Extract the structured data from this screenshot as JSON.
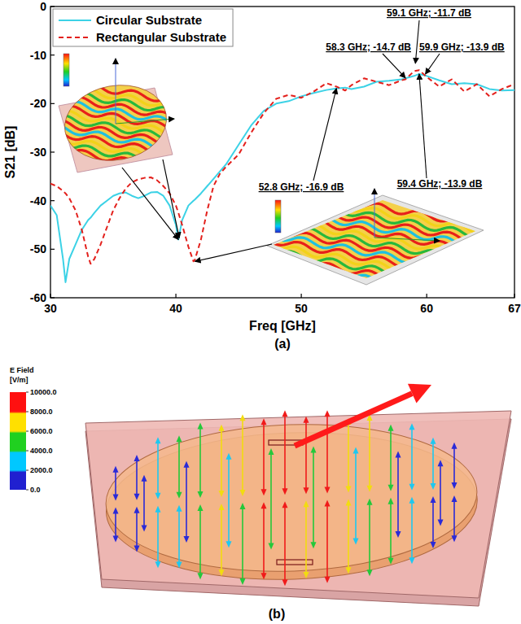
{
  "chart_data": {
    "type": "line",
    "xlabel": "Freq [GHz]",
    "ylabel": "S21 [dB]",
    "x": [
      30,
      30.5,
      31,
      31.2,
      31.5,
      32,
      32.5,
      33,
      33.2,
      33.5,
      34,
      34.5,
      35,
      35.5,
      36,
      36.5,
      37,
      37.5,
      38,
      38.5,
      39,
      39.5,
      40,
      40.2,
      40.5,
      41,
      41.4,
      41.5,
      42,
      42.5,
      43,
      43.5,
      44,
      45,
      46,
      47,
      48,
      49,
      50,
      51,
      52,
      52.8,
      53.5,
      54,
      55,
      56,
      57,
      58,
      58.3,
      59,
      59.4,
      60,
      61,
      62,
      63,
      64,
      65,
      66,
      67
    ],
    "series": [
      {
        "name": "Circular Substrate",
        "color": "#3cd2e6",
        "line_style": "solid",
        "values": [
          -41,
          -43,
          -52,
          -56.8,
          -52,
          -49,
          -46,
          -44,
          -43.5,
          -42.5,
          -41,
          -40,
          -39,
          -38.5,
          -38.3,
          -39,
          -39.5,
          -39,
          -38.3,
          -38.2,
          -39,
          -41,
          -45,
          -48,
          -44,
          -41,
          -40,
          -39.8,
          -38.5,
          -37,
          -35.5,
          -34,
          -32.5,
          -28.5,
          -24.5,
          -21.5,
          -20,
          -19.5,
          -18.5,
          -17.8,
          -17.2,
          -16.9,
          -16.7,
          -17,
          -16.5,
          -15.5,
          -15.3,
          -15,
          -14.8,
          -14.3,
          -13.9,
          -14.3,
          -15.2,
          -16,
          -15.8,
          -16,
          -17,
          -17.3,
          -17.2
        ]
      },
      {
        "name": "Rectangular Substrate",
        "color": "#e3201c",
        "line_style": "dashed",
        "values": [
          -36.5,
          -37,
          -38,
          -38.5,
          -39.5,
          -42,
          -46,
          -51.5,
          -53,
          -52,
          -49,
          -45.5,
          -42,
          -39.5,
          -37.5,
          -36.2,
          -35.6,
          -35.3,
          -35.2,
          -35.8,
          -37,
          -38.5,
          -41,
          -42.5,
          -45,
          -49.5,
          -52.5,
          -52.3,
          -48,
          -42,
          -37,
          -34.5,
          -33,
          -30.5,
          -26,
          -22,
          -19,
          -18.2,
          -18.8,
          -17.5,
          -15.8,
          -16.5,
          -17.3,
          -16.2,
          -14.8,
          -15.5,
          -16.2,
          -15.2,
          -15,
          -13.3,
          -13.1,
          -14.5,
          -16.5,
          -15,
          -17.5,
          -16,
          -18.5,
          -17,
          -16
        ]
      }
    ],
    "xlim": [
      30,
      67
    ],
    "xticks": [
      30,
      40,
      50,
      60,
      67
    ],
    "ylim": [
      -60,
      0
    ],
    "yticks": [
      0,
      -10,
      -20,
      -30,
      -40,
      -50,
      -60
    ],
    "grid": false,
    "legend": "upper left",
    "annotations": [
      {
        "text": "59.1 GHz; -11.7 dB",
        "x": 59.1,
        "y": -11.7
      },
      {
        "text": "58.3 GHz; -14.7 dB",
        "x": 58.3,
        "y": -14.7
      },
      {
        "text": "59.9 GHz; -13.9 dB",
        "x": 59.9,
        "y": -13.9
      },
      {
        "text": "52.8 GHz; -16.9 dB",
        "x": 52.8,
        "y": -16.9
      },
      {
        "text": "59.4 GHz; -13.9 dB",
        "x": 59.4,
        "y": -13.9
      }
    ]
  },
  "field_plot": {
    "legend_title": "E Field",
    "legend_unit": "[V/m]",
    "colorbar_range": [
      0,
      10000
    ],
    "colorbar_ticks": [
      {
        "value": 10000,
        "label": "10000.0"
      },
      {
        "value": 8000,
        "label": "8000.0"
      },
      {
        "value": 6000,
        "label": "6000.0"
      },
      {
        "value": 4000,
        "label": "4000.0"
      },
      {
        "value": 2000,
        "label": "2000.0"
      },
      {
        "value": 0,
        "label": "0.0"
      }
    ]
  },
  "figure": {
    "panel_labels": [
      "(a)",
      "(b)"
    ]
  }
}
